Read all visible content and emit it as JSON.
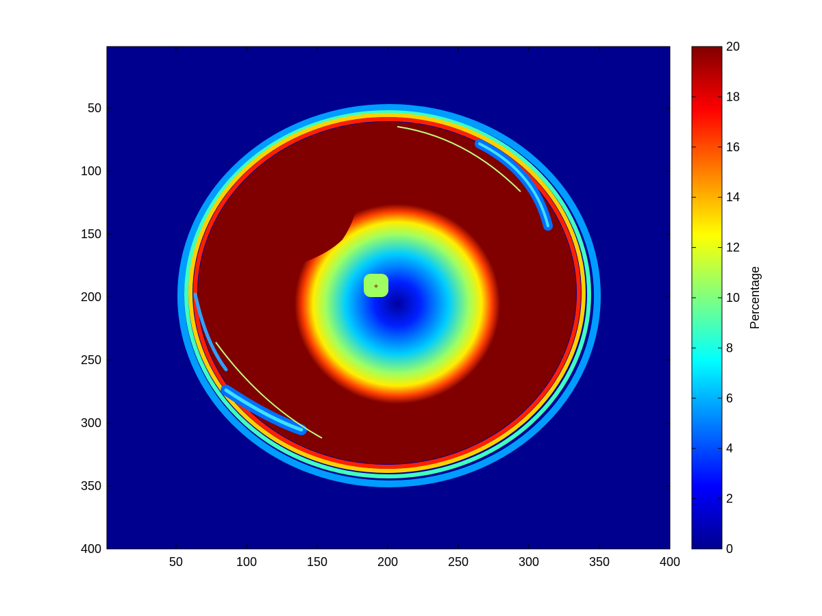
{
  "chart_data": {
    "type": "heatmap",
    "title": "",
    "xlabel": "",
    "ylabel": "",
    "colormap": "jet",
    "xlim": [
      1,
      400
    ],
    "ylim": [
      1,
      400
    ],
    "y_reversed": true,
    "xticks": [
      50,
      100,
      150,
      200,
      250,
      300,
      350,
      400
    ],
    "yticks": [
      50,
      100,
      150,
      200,
      250,
      300,
      350,
      400
    ],
    "colorbar": {
      "label": "Percentage",
      "range": [
        0,
        20
      ],
      "ticks": [
        0,
        2,
        4,
        6,
        8,
        10,
        12,
        14,
        16,
        18,
        20
      ]
    },
    "regions": {
      "background_value": 0,
      "saturated_disk": {
        "center": [
          203,
          197
        ],
        "radii": [
          145,
          130
        ],
        "value": 20
      },
      "inner_gradient": {
        "center": [
          210,
          205
        ],
        "radius": 78,
        "min_value": 0.8,
        "max_value": 20
      },
      "marker": {
        "x": 192,
        "y": 192,
        "value": 11,
        "symbol": "+"
      }
    }
  }
}
